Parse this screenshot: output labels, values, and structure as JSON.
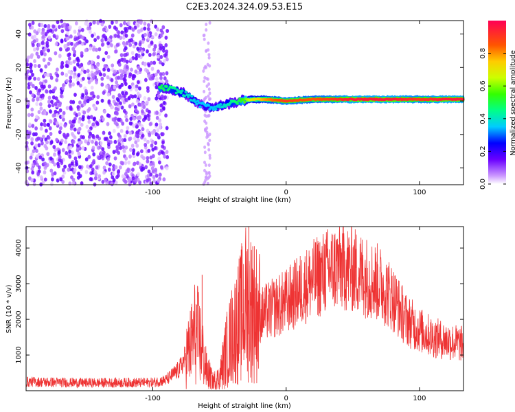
{
  "title": "C2E3.2024.324.09.53.E15",
  "chart_data": [
    {
      "type": "heatmap",
      "title": "C2E3.2024.324.09.53.E15",
      "xlabel": "Height of straight line (km)",
      "ylabel": "Frequency (Hz)",
      "xlim": [
        -195,
        133
      ],
      "ylim": [
        -50,
        48
      ],
      "x_ticks": [
        "-100",
        "0",
        "100"
      ],
      "y_ticks": [
        "40",
        "20",
        "0",
        "-20",
        "-40"
      ],
      "colorbar": {
        "label": "Normalized spectral amplitude",
        "range": [
          0,
          1
        ],
        "ticks": [
          "0.0",
          "0.2",
          "0.4",
          "0.6",
          "0.8"
        ]
      },
      "ridge": {
        "x": [
          -95,
          -85,
          -75,
          -65,
          -55,
          -45,
          -35,
          -25,
          -15,
          0,
          20,
          50,
          80,
          100,
          120,
          133
        ],
        "frequency": [
          8,
          7,
          4,
          -2,
          -4,
          -2,
          0,
          1,
          1,
          0,
          1,
          1,
          1,
          1,
          1,
          1
        ],
        "amplitude": [
          0.5,
          0.45,
          0.4,
          0.35,
          0.35,
          0.4,
          0.5,
          0.7,
          0.8,
          0.9,
          0.85,
          0.95,
          0.95,
          0.9,
          0.95,
          0.95
        ]
      },
      "noise_region_x": [
        -195,
        -95
      ],
      "noise_amplitude": 0.15
    },
    {
      "type": "line",
      "xlabel": "Height of straight line (km)",
      "ylabel": "SNR (10 * v/v)",
      "xlim": [
        -195,
        133
      ],
      "ylim": [
        0,
        4600
      ],
      "x_ticks": [
        "-100",
        "0",
        "100"
      ],
      "y_ticks": [
        "1000",
        "2000",
        "3000",
        "4000"
      ],
      "color": "#ee3333",
      "envelope": {
        "x": [
          -195,
          -150,
          -100,
          -90,
          -80,
          -72,
          -68,
          -64,
          -60,
          -55,
          -50,
          -45,
          -40,
          -35,
          -30,
          -25,
          -20,
          -10,
          0,
          10,
          20,
          30,
          40,
          50,
          60,
          70,
          80,
          90,
          100,
          110,
          120,
          133
        ],
        "y": [
          250,
          220,
          230,
          300,
          600,
          1200,
          1700,
          1300,
          600,
          250,
          350,
          1100,
          1600,
          2000,
          2500,
          2300,
          2100,
          2300,
          2500,
          2800,
          3100,
          3350,
          3500,
          3400,
          3200,
          3000,
          2600,
          2000,
          1700,
          1500,
          1400,
          1300
        ]
      },
      "spikes": [
        {
          "x": -63,
          "y": 3250
        },
        {
          "x": -33,
          "y": 3950
        },
        {
          "x": -28,
          "y": 4600
        },
        {
          "x": -25,
          "y": 4050
        },
        {
          "x": 39,
          "y": 4100
        }
      ]
    }
  ]
}
